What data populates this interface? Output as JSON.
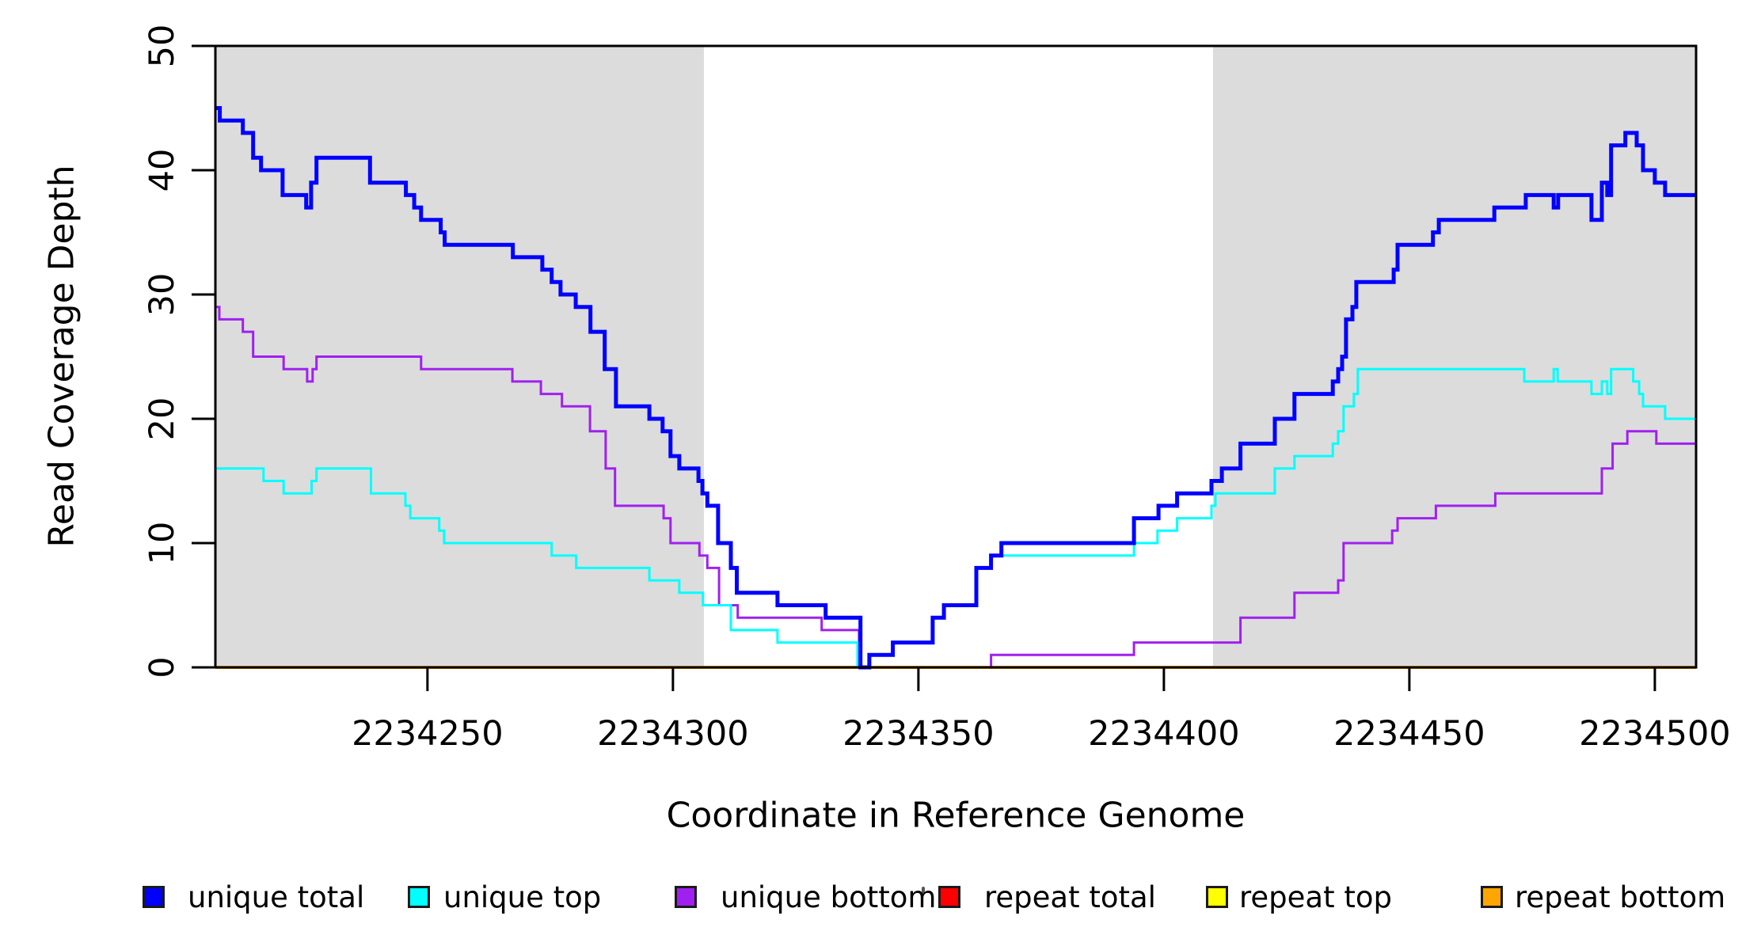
{
  "figure": {
    "x_axis_title": "Coordinate in Reference Genome",
    "y_axis_title": "Read Coverage Depth"
  },
  "legend": {
    "items": [
      {
        "label": "unique total",
        "color": "#0000FF"
      },
      {
        "label": "unique top",
        "color": "#00FFFF"
      },
      {
        "label": "unique bottom",
        "color": "#A020F0"
      },
      {
        "label": "repeat total",
        "color": "#FF0000"
      },
      {
        "label": "repeat top",
        "color": "#FFFF00"
      },
      {
        "label": "repeat bottom",
        "color": "#FFA500"
      }
    ]
  },
  "chart_data": {
    "type": "line",
    "line_style": "step-after",
    "title": "",
    "xlabel": "Coordinate in Reference Genome",
    "ylabel": "Read Coverage Depth",
    "xlim": [
      2234206.8,
      2234508.4
    ],
    "ylim": [
      0,
      50
    ],
    "x_ticks": [
      2234250,
      2234300,
      2234350,
      2234400,
      2234450,
      2234500
    ],
    "y_ticks": [
      0,
      10,
      20,
      30,
      40,
      50
    ],
    "grid": false,
    "legend_position": "bottom",
    "shaded_regions": [
      {
        "x0": 2234206.8,
        "x1": 2234306.3,
        "color": "#DCDCDC",
        "meaning": "shaded band left"
      },
      {
        "x0": 2234410.0,
        "x1": 2234508.4,
        "color": "#DCDCDC",
        "meaning": "shaded band right"
      }
    ],
    "series": [
      {
        "name": "repeat total",
        "color": "#FF0000",
        "width": 3,
        "points": [
          [
            2234206.8,
            0
          ]
        ]
      },
      {
        "name": "repeat top",
        "color": "#FFFF00",
        "width": 3,
        "points": [
          [
            2234206.8,
            0
          ]
        ]
      },
      {
        "name": "repeat bottom",
        "color": "#FFA500",
        "width": 4,
        "points": [
          [
            2234206.8,
            0
          ]
        ]
      },
      {
        "name": "unique bottom",
        "color": "#A020F0",
        "width": 3,
        "points": [
          [
            2234206.8,
            29
          ],
          [
            2234207.6,
            28
          ],
          [
            2234212.4,
            27
          ],
          [
            2234214.5,
            25
          ],
          [
            2234220.7,
            24
          ],
          [
            2234225.5,
            23
          ],
          [
            2234226.6,
            24
          ],
          [
            2234227.4,
            25
          ],
          [
            2234248.7,
            24
          ],
          [
            2234267.3,
            23
          ],
          [
            2234273.1,
            22
          ],
          [
            2234277.4,
            21
          ],
          [
            2234283.1,
            19
          ],
          [
            2234286.3,
            16
          ],
          [
            2234288.2,
            13
          ],
          [
            2234298.1,
            12
          ],
          [
            2234299.5,
            10
          ],
          [
            2234305.4,
            9
          ],
          [
            2234307.0,
            8
          ],
          [
            2234309.4,
            5
          ],
          [
            2234313.2,
            4
          ],
          [
            2234330.3,
            3
          ],
          [
            2234337.9,
            0
          ],
          [
            2234364.8,
            1
          ],
          [
            2234393.9,
            2
          ],
          [
            2234415.6,
            4
          ],
          [
            2234426.6,
            6
          ],
          [
            2234435.5,
            7
          ],
          [
            2234436.6,
            10
          ],
          [
            2234446.5,
            11
          ],
          [
            2234447.6,
            12
          ],
          [
            2234455.4,
            13
          ],
          [
            2234467.5,
            14
          ],
          [
            2234489.2,
            16
          ],
          [
            2234491.4,
            18
          ],
          [
            2234494.4,
            19
          ],
          [
            2234500.3,
            18
          ]
        ]
      },
      {
        "name": "unique top",
        "color": "#00FFFF",
        "width": 3,
        "points": [
          [
            2234206.8,
            16
          ],
          [
            2234216.6,
            15
          ],
          [
            2234220.7,
            14
          ],
          [
            2234226.4,
            15
          ],
          [
            2234227.4,
            16
          ],
          [
            2234238.5,
            14
          ],
          [
            2234245.5,
            13
          ],
          [
            2234246.5,
            12
          ],
          [
            2234252.4,
            11
          ],
          [
            2234253.4,
            10
          ],
          [
            2234275.3,
            9
          ],
          [
            2234280.3,
            8
          ],
          [
            2234295.2,
            7
          ],
          [
            2234301.3,
            6
          ],
          [
            2234306.1,
            5
          ],
          [
            2234311.8,
            3
          ],
          [
            2234321.3,
            2
          ],
          [
            2234337.6,
            0
          ],
          [
            2234340.0,
            1
          ],
          [
            2234344.8,
            2
          ],
          [
            2234352.9,
            4
          ],
          [
            2234355.2,
            5
          ],
          [
            2234361.8,
            8
          ],
          [
            2234364.8,
            9
          ],
          [
            2234393.9,
            10
          ],
          [
            2234398.7,
            11
          ],
          [
            2234402.7,
            12
          ],
          [
            2234409.7,
            13
          ],
          [
            2234410.5,
            14
          ],
          [
            2234422.6,
            16
          ],
          [
            2234426.6,
            17
          ],
          [
            2234434.4,
            18
          ],
          [
            2234435.5,
            19
          ],
          [
            2234436.6,
            21
          ],
          [
            2234438.7,
            22
          ],
          [
            2234439.5,
            24
          ],
          [
            2234473.4,
            23
          ],
          [
            2234479.4,
            24
          ],
          [
            2234480.2,
            23
          ],
          [
            2234487.1,
            22
          ],
          [
            2234489.2,
            23
          ],
          [
            2234490.3,
            22
          ],
          [
            2234491.1,
            24
          ],
          [
            2234495.6,
            23
          ],
          [
            2234496.8,
            22
          ],
          [
            2234497.6,
            21
          ],
          [
            2234502.1,
            20
          ]
        ]
      },
      {
        "name": "unique total",
        "color": "#0000FF",
        "width": 5,
        "points": [
          [
            2234206.8,
            45
          ],
          [
            2234207.7,
            44
          ],
          [
            2234212.4,
            43
          ],
          [
            2234214.5,
            41
          ],
          [
            2234216.1,
            40
          ],
          [
            2234220.5,
            38
          ],
          [
            2234225.3,
            37
          ],
          [
            2234226.3,
            39
          ],
          [
            2234227.4,
            41
          ],
          [
            2234238.3,
            39
          ],
          [
            2234245.6,
            38
          ],
          [
            2234247.3,
            37
          ],
          [
            2234248.7,
            36
          ],
          [
            2234252.7,
            35
          ],
          [
            2234253.5,
            34
          ],
          [
            2234267.4,
            33
          ],
          [
            2234273.4,
            32
          ],
          [
            2234275.3,
            31
          ],
          [
            2234277.1,
            30
          ],
          [
            2234280.2,
            29
          ],
          [
            2234283.2,
            27
          ],
          [
            2234286.1,
            24
          ],
          [
            2234288.4,
            21
          ],
          [
            2234295.2,
            20
          ],
          [
            2234297.9,
            19
          ],
          [
            2234299.5,
            17
          ],
          [
            2234301.3,
            16
          ],
          [
            2234305.2,
            15
          ],
          [
            2234306.0,
            14
          ],
          [
            2234307.0,
            13
          ],
          [
            2234309.2,
            10
          ],
          [
            2234311.8,
            8
          ],
          [
            2234313.0,
            6
          ],
          [
            2234321.3,
            5
          ],
          [
            2234331.1,
            4
          ],
          [
            2234338.2,
            0
          ],
          [
            2234340.0,
            1
          ],
          [
            2234344.8,
            2
          ],
          [
            2234352.9,
            4
          ],
          [
            2234355.2,
            5
          ],
          [
            2234361.8,
            8
          ],
          [
            2234364.8,
            9
          ],
          [
            2234366.9,
            10
          ],
          [
            2234393.9,
            12
          ],
          [
            2234398.9,
            13
          ],
          [
            2234402.7,
            14
          ],
          [
            2234409.7,
            15
          ],
          [
            2234411.8,
            16
          ],
          [
            2234415.6,
            18
          ],
          [
            2234422.6,
            20
          ],
          [
            2234426.6,
            22
          ],
          [
            2234434.4,
            23
          ],
          [
            2234435.5,
            24
          ],
          [
            2234436.3,
            25
          ],
          [
            2234437.1,
            28
          ],
          [
            2234438.4,
            29
          ],
          [
            2234439.2,
            31
          ],
          [
            2234446.8,
            32
          ],
          [
            2234447.6,
            34
          ],
          [
            2234454.8,
            35
          ],
          [
            2234456.0,
            36
          ],
          [
            2234467.3,
            37
          ],
          [
            2234473.7,
            38
          ],
          [
            2234479.4,
            37
          ],
          [
            2234480.3,
            38
          ],
          [
            2234487.1,
            36
          ],
          [
            2234489.2,
            39
          ],
          [
            2234490.3,
            38
          ],
          [
            2234491.1,
            42
          ],
          [
            2234494.0,
            43
          ],
          [
            2234496.3,
            42
          ],
          [
            2234497.6,
            40
          ],
          [
            2234500.0,
            39
          ],
          [
            2234502.1,
            38
          ]
        ]
      }
    ]
  }
}
